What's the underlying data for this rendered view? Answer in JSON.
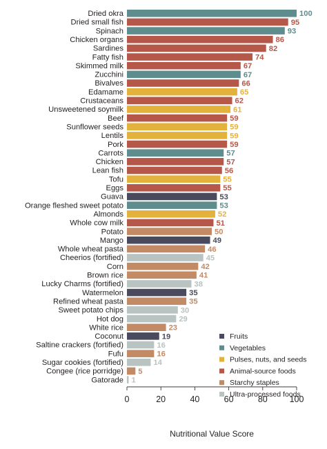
{
  "chart_data": {
    "type": "bar",
    "orientation": "horizontal",
    "title": "",
    "xlabel": "Nutritional Value Score",
    "ylabel": "",
    "xlim": [
      0,
      100
    ],
    "xticks": [
      0,
      20,
      40,
      60,
      80,
      100
    ],
    "grid": false,
    "legend_position": "bottom-right",
    "groups": [
      {
        "key": "fruits",
        "name": "Fruits",
        "color": "#4a4a5e"
      },
      {
        "key": "vegetables",
        "name": "Vegetables",
        "color": "#5f8c8c"
      },
      {
        "key": "pulses",
        "name": "Pulses, nuts, and seeds",
        "color": "#e3b23c"
      },
      {
        "key": "animal",
        "name": "Animal-source foods",
        "color": "#b5584a"
      },
      {
        "key": "starchy",
        "name": "Starchy staples",
        "color": "#c28a65"
      },
      {
        "key": "ultra",
        "name": "Ultra-processed foods",
        "color": "#b9c3c1"
      }
    ],
    "bars": [
      {
        "label": "Dried okra",
        "value": 100,
        "group": "vegetables"
      },
      {
        "label": "Dried small fish",
        "value": 95,
        "group": "animal"
      },
      {
        "label": "Spinach",
        "value": 93,
        "group": "vegetables"
      },
      {
        "label": "Chicken organs",
        "value": 86,
        "group": "animal"
      },
      {
        "label": "Sardines",
        "value": 82,
        "group": "animal"
      },
      {
        "label": "Fatty fish",
        "value": 74,
        "group": "animal"
      },
      {
        "label": "Skimmed milk",
        "value": 67,
        "group": "animal"
      },
      {
        "label": "Zucchini",
        "value": 67,
        "group": "vegetables"
      },
      {
        "label": "Bivalves",
        "value": 66,
        "group": "animal"
      },
      {
        "label": "Edamame",
        "value": 65,
        "group": "pulses"
      },
      {
        "label": "Crustaceans",
        "value": 62,
        "group": "animal"
      },
      {
        "label": "Unsweetened soymilk",
        "value": 61,
        "group": "pulses"
      },
      {
        "label": "Beef",
        "value": 59,
        "group": "animal"
      },
      {
        "label": "Sunflower seeds",
        "value": 59,
        "group": "pulses"
      },
      {
        "label": "Lentils",
        "value": 59,
        "group": "pulses"
      },
      {
        "label": "Pork",
        "value": 59,
        "group": "animal"
      },
      {
        "label": "Carrots",
        "value": 57,
        "group": "vegetables"
      },
      {
        "label": "Chicken",
        "value": 57,
        "group": "animal"
      },
      {
        "label": "Lean fish",
        "value": 56,
        "group": "animal"
      },
      {
        "label": "Tofu",
        "value": 55,
        "group": "pulses"
      },
      {
        "label": "Eggs",
        "value": 55,
        "group": "animal"
      },
      {
        "label": "Guava",
        "value": 53,
        "group": "fruits"
      },
      {
        "label": "Orange fleshed sweet potato",
        "value": 53,
        "group": "vegetables"
      },
      {
        "label": "Almonds",
        "value": 52,
        "group": "pulses"
      },
      {
        "label": "Whole cow milk",
        "value": 51,
        "group": "animal"
      },
      {
        "label": "Potato",
        "value": 50,
        "group": "starchy"
      },
      {
        "label": "Mango",
        "value": 49,
        "group": "fruits"
      },
      {
        "label": "Whole wheat pasta",
        "value": 46,
        "group": "starchy"
      },
      {
        "label": "Cheerios (fortified)",
        "value": 45,
        "group": "ultra"
      },
      {
        "label": "Corn",
        "value": 42,
        "group": "starchy"
      },
      {
        "label": "Brown rice",
        "value": 41,
        "group": "starchy"
      },
      {
        "label": "Lucky Charms (fortified)",
        "value": 38,
        "group": "ultra"
      },
      {
        "label": "Watermelon",
        "value": 35,
        "group": "fruits"
      },
      {
        "label": "Refined wheat pasta",
        "value": 35,
        "group": "starchy"
      },
      {
        "label": "Sweet potato chips",
        "value": 30,
        "group": "ultra"
      },
      {
        "label": "Hot dog",
        "value": 29,
        "group": "ultra"
      },
      {
        "label": "White rice",
        "value": 23,
        "group": "starchy"
      },
      {
        "label": "Coconut",
        "value": 19,
        "group": "fruits"
      },
      {
        "label": "Saltine crackers (fortified)",
        "value": 16,
        "group": "ultra"
      },
      {
        "label": "Fufu",
        "value": 16,
        "group": "starchy"
      },
      {
        "label": "Sugar cookies (fortified)",
        "value": 14,
        "group": "ultra"
      },
      {
        "label": "Congee (rice porridge)",
        "value": 5,
        "group": "starchy"
      },
      {
        "label": "Gatorade",
        "value": 1,
        "group": "ultra"
      }
    ]
  }
}
